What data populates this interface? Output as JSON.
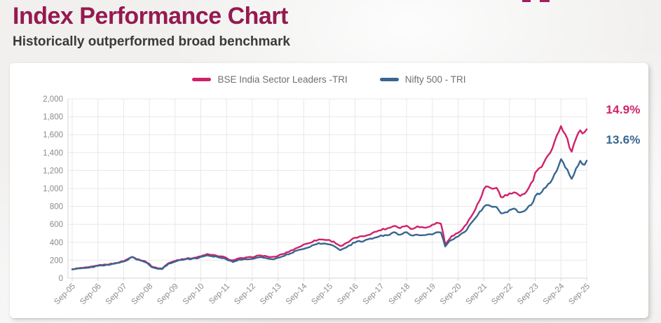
{
  "page": {
    "title": "Index Performance Chart",
    "subtitle": "Historically outperformed broad benchmark"
  },
  "colors": {
    "title_accent": "#951A50",
    "pink": "#D02169",
    "blue": "#376691",
    "grid": "#E8E8E8",
    "axis": "#D6D6D6",
    "tick_text": "#8B8B8B"
  },
  "chart_data": {
    "type": "line",
    "title": "Index Performance Chart",
    "xlabel": "",
    "ylabel": "",
    "ylim": [
      0,
      2000
    ],
    "grid": true,
    "legend_position": "top-center",
    "x_tick_labels": [
      "Sep-05",
      "Sep-06",
      "Sep-07",
      "Sep-08",
      "Sep-09",
      "Sep-10",
      "Sep-11",
      "Sep-12",
      "Sep-13",
      "Sep-14",
      "Sep-15",
      "Sep-16",
      "Sep-17",
      "Sep-18",
      "Sep-19",
      "Sep-20",
      "Sep-21",
      "Sep-22",
      "Sep-23",
      "Sep-24",
      "Sep-25"
    ],
    "y_ticks": [
      0,
      200,
      400,
      600,
      800,
      1000,
      1200,
      1400,
      1600,
      1800,
      2000
    ],
    "y_tick_labels": [
      "0",
      "200",
      "400",
      "600",
      "800",
      "1,000",
      "1,200",
      "1,400",
      "1,600",
      "1,800",
      "2,000"
    ],
    "end_labels": [
      {
        "text": "14.9%",
        "series": "BSE India Sector Leaders -TRI",
        "color": "#D02169"
      },
      {
        "text": "13.6%",
        "series": "Nifty 500 - TRI",
        "color": "#376691"
      }
    ],
    "series": [
      {
        "name": "BSE India Sector Leaders -TRI",
        "color": "#D02169",
        "keypoints": [
          [
            0,
            100
          ],
          [
            0.3,
            112
          ],
          [
            0.6,
            118
          ],
          [
            0.8,
            128
          ],
          [
            1,
            143
          ],
          [
            1.3,
            152
          ],
          [
            1.6,
            162
          ],
          [
            1.9,
            183
          ],
          [
            2,
            192
          ],
          [
            2.15,
            210
          ],
          [
            2.35,
            245
          ],
          [
            2.5,
            215
          ],
          [
            2.7,
            200
          ],
          [
            2.9,
            180
          ],
          [
            3.1,
            130
          ],
          [
            3.3,
            112
          ],
          [
            3.5,
            108
          ],
          [
            3.7,
            160
          ],
          [
            4,
            195
          ],
          [
            4.3,
            215
          ],
          [
            4.6,
            222
          ],
          [
            4.9,
            235
          ],
          [
            5.1,
            252
          ],
          [
            5.2,
            268
          ],
          [
            5.4,
            258
          ],
          [
            5.6,
            252
          ],
          [
            5.9,
            235
          ],
          [
            6.1,
            210
          ],
          [
            6.25,
            198
          ],
          [
            6.4,
            215
          ],
          [
            6.6,
            222
          ],
          [
            6.8,
            228
          ],
          [
            7,
            237
          ],
          [
            7.2,
            248
          ],
          [
            7.4,
            252
          ],
          [
            7.6,
            240
          ],
          [
            7.8,
            232
          ],
          [
            7.95,
            240
          ],
          [
            8,
            252
          ],
          [
            8.3,
            280
          ],
          [
            8.6,
            320
          ],
          [
            9,
            372
          ],
          [
            9.3,
            405
          ],
          [
            9.6,
            432
          ],
          [
            9.9,
            428
          ],
          [
            10,
            422
          ],
          [
            10.2,
            400
          ],
          [
            10.45,
            355
          ],
          [
            10.7,
            395
          ],
          [
            11,
            452
          ],
          [
            11.3,
            465
          ],
          [
            11.6,
            495
          ],
          [
            12,
            540
          ],
          [
            12.3,
            558
          ],
          [
            12.55,
            590
          ],
          [
            12.7,
            560
          ],
          [
            13,
            588
          ],
          [
            13.15,
            548
          ],
          [
            13.4,
            575
          ],
          [
            13.7,
            565
          ],
          [
            14,
            592
          ],
          [
            14.2,
            618
          ],
          [
            14.35,
            610
          ],
          [
            14.5,
            375
          ],
          [
            14.7,
            455
          ],
          [
            15,
            505
          ],
          [
            15.3,
            590
          ],
          [
            15.6,
            730
          ],
          [
            15.9,
            900
          ],
          [
            16,
            990
          ],
          [
            16.1,
            1020
          ],
          [
            16.3,
            990
          ],
          [
            16.5,
            1015
          ],
          [
            16.7,
            880
          ],
          [
            16.8,
            920
          ],
          [
            17,
            935
          ],
          [
            17.2,
            960
          ],
          [
            17.4,
            905
          ],
          [
            17.6,
            950
          ],
          [
            17.9,
            1080
          ],
          [
            18,
            1185
          ],
          [
            18.3,
            1260
          ],
          [
            18.6,
            1420
          ],
          [
            18.9,
            1620
          ],
          [
            19,
            1710
          ],
          [
            19.1,
            1640
          ],
          [
            19.25,
            1540
          ],
          [
            19.4,
            1395
          ],
          [
            19.6,
            1590
          ],
          [
            19.75,
            1655
          ],
          [
            19.85,
            1600
          ],
          [
            20,
            1660
          ]
        ]
      },
      {
        "name": "Nifty 500 - TRI",
        "color": "#376691",
        "keypoints": [
          [
            0,
            98
          ],
          [
            0.3,
            108
          ],
          [
            0.6,
            114
          ],
          [
            0.8,
            124
          ],
          [
            1,
            138
          ],
          [
            1.3,
            147
          ],
          [
            1.6,
            157
          ],
          [
            1.9,
            178
          ],
          [
            2,
            186
          ],
          [
            2.15,
            205
          ],
          [
            2.35,
            240
          ],
          [
            2.5,
            208
          ],
          [
            2.7,
            192
          ],
          [
            2.9,
            172
          ],
          [
            3.1,
            124
          ],
          [
            3.3,
            106
          ],
          [
            3.5,
            102
          ],
          [
            3.7,
            152
          ],
          [
            4,
            188
          ],
          [
            4.3,
            208
          ],
          [
            4.6,
            214
          ],
          [
            4.9,
            226
          ],
          [
            5.1,
            242
          ],
          [
            5.2,
            256
          ],
          [
            5.4,
            246
          ],
          [
            5.6,
            240
          ],
          [
            5.9,
            222
          ],
          [
            6.1,
            196
          ],
          [
            6.25,
            184
          ],
          [
            6.4,
            200
          ],
          [
            6.6,
            206
          ],
          [
            6.8,
            211
          ],
          [
            7,
            218
          ],
          [
            7.2,
            228
          ],
          [
            7.4,
            231
          ],
          [
            7.6,
            220
          ],
          [
            7.8,
            212
          ],
          [
            7.95,
            220
          ],
          [
            8,
            230
          ],
          [
            8.3,
            255
          ],
          [
            8.6,
            292
          ],
          [
            9,
            330
          ],
          [
            9.3,
            360
          ],
          [
            9.6,
            388
          ],
          [
            9.9,
            382
          ],
          [
            10,
            375
          ],
          [
            10.2,
            355
          ],
          [
            10.45,
            312
          ],
          [
            10.7,
            350
          ],
          [
            11,
            402
          ],
          [
            11.3,
            412
          ],
          [
            11.6,
            438
          ],
          [
            12,
            470
          ],
          [
            12.3,
            485
          ],
          [
            12.55,
            512
          ],
          [
            12.7,
            488
          ],
          [
            13,
            512
          ],
          [
            13.15,
            470
          ],
          [
            13.4,
            488
          ],
          [
            13.7,
            475
          ],
          [
            14,
            492
          ],
          [
            14.2,
            512
          ],
          [
            14.35,
            505
          ],
          [
            14.5,
            350
          ],
          [
            14.7,
            420
          ],
          [
            15,
            462
          ],
          [
            15.3,
            530
          ],
          [
            15.6,
            640
          ],
          [
            15.9,
            760
          ],
          [
            16,
            795
          ],
          [
            16.1,
            815
          ],
          [
            16.3,
            790
          ],
          [
            16.5,
            800
          ],
          [
            16.7,
            700
          ],
          [
            16.8,
            730
          ],
          [
            17,
            752
          ],
          [
            17.2,
            770
          ],
          [
            17.4,
            728
          ],
          [
            17.6,
            760
          ],
          [
            17.9,
            840
          ],
          [
            18,
            915
          ],
          [
            18.3,
            975
          ],
          [
            18.6,
            1080
          ],
          [
            18.9,
            1240
          ],
          [
            19,
            1330
          ],
          [
            19.1,
            1270
          ],
          [
            19.25,
            1200
          ],
          [
            19.4,
            1085
          ],
          [
            19.6,
            1240
          ],
          [
            19.75,
            1300
          ],
          [
            19.85,
            1255
          ],
          [
            20,
            1310
          ]
        ]
      }
    ]
  }
}
